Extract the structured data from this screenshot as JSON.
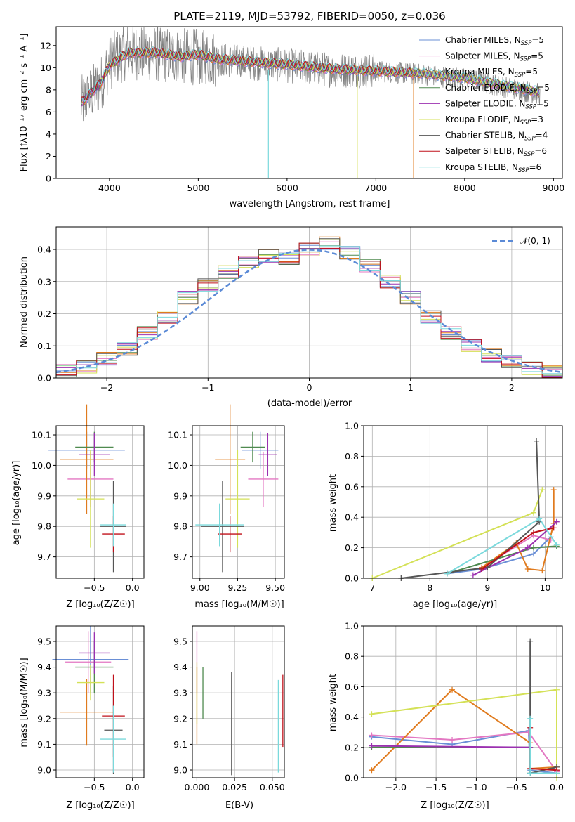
{
  "colors": {
    "chabrier_miles": "#6a8fd6",
    "salpeter_miles": "#e377c2",
    "kroupa_miles": "#e07b1e",
    "chabrier_elodie": "#4f8a4f",
    "salpeter_elodie": "#9b30b0",
    "kroupa_elodie": "#d4e157",
    "chabrier_stelib": "#555555",
    "salpeter_stelib": "#c0101a",
    "kroupa_stelib": "#7ad9dc",
    "gauss": "#5b8ad6",
    "grid": "#b0b0b0"
  },
  "panel_spectrum": {
    "title": "PLATE=2119, MJD=53792, FIBERID=0050, z=0.036",
    "xlabel": "wavelength [Angstrom, rest frame]",
    "ylabel": "Flux [fλ10⁻¹⁷ erg cm⁻² s⁻¹ A⁻¹]",
    "xticks": [
      "4000",
      "5000",
      "6000",
      "7000",
      "8000",
      "9000"
    ],
    "yticks": [
      "0",
      "2",
      "4",
      "6",
      "8",
      "10",
      "12"
    ],
    "legend": [
      {
        "base": "Chabrier MILES",
        "n": "5",
        "color_key": "chabrier_miles"
      },
      {
        "base": "Salpeter MILES",
        "n": "5",
        "color_key": "salpeter_miles"
      },
      {
        "base": "Kroupa MILES",
        "n": "5",
        "color_key": "kroupa_miles"
      },
      {
        "base": "Chabrier ELODIE",
        "n": "5",
        "color_key": "chabrier_elodie"
      },
      {
        "base": "Salpeter ELODIE",
        "n": "5",
        "color_key": "salpeter_elodie"
      },
      {
        "base": "Kroupa ELODIE",
        "n": "3",
        "color_key": "kroupa_elodie"
      },
      {
        "base": "Chabrier STELIB",
        "n": "4",
        "color_key": "chabrier_stelib"
      },
      {
        "base": "Salpeter STELIB",
        "n": "6",
        "color_key": "salpeter_stelib"
      },
      {
        "base": "Kroupa STELIB",
        "n": "6",
        "color_key": "kroupa_stelib"
      }
    ]
  },
  "panel_hist": {
    "xlabel": "(data-model)/error",
    "ylabel": "Normed distribution",
    "xticks": [
      "−2",
      "−1",
      "0",
      "1",
      "2"
    ],
    "yticks": [
      "0.0",
      "0.1",
      "0.2",
      "0.3",
      "0.4"
    ],
    "legend_label": "𝒩(0, 1)"
  },
  "panel_age_Z": {
    "ylabel": "age  [log₁₀(age/yr)]",
    "xlabel": "Z [log₁₀(Z/Z☉)]",
    "xticks": [
      "−0.5",
      "0.0"
    ],
    "yticks": [
      "9.7",
      "9.8",
      "9.9",
      "10.0",
      "10.1"
    ]
  },
  "panel_age_mass": {
    "xlabel": "mass [log₁₀(M/M☉)]",
    "xticks": [
      "9.00",
      "9.25",
      "9.50"
    ],
    "yticks": [
      "9.7",
      "9.8",
      "9.9",
      "10.0",
      "10.1"
    ]
  },
  "panel_weight_age": {
    "ylabel": "mass weight",
    "xlabel": "age  [log₁₀(age/yr)]",
    "xticks": [
      "7",
      "8",
      "9",
      "10"
    ],
    "yticks": [
      "0.0",
      "0.2",
      "0.4",
      "0.6",
      "0.8",
      "1.0"
    ]
  },
  "panel_mass_Z": {
    "ylabel": "mass [log₁₀(M/M☉)]",
    "xlabel": "Z [log₁₀(Z/Z☉)]",
    "xticks": [
      "−0.5",
      "0.0"
    ],
    "yticks": [
      "9.0",
      "9.1",
      "9.2",
      "9.3",
      "9.4",
      "9.5"
    ]
  },
  "panel_mass_ebv": {
    "xlabel": "E(B-V)",
    "xticks": [
      "0.000",
      "0.025",
      "0.050"
    ],
    "yticks": [
      "9.0",
      "9.1",
      "9.2",
      "9.3",
      "9.4",
      "9.5"
    ]
  },
  "panel_weight_Z": {
    "ylabel": "mass weight",
    "xlabel": "Z [log₁₀(Z/Z☉)]",
    "xticks": [
      "−2.0",
      "−1.5",
      "−1.0",
      "−0.5",
      "0.0"
    ],
    "yticks": [
      "0.0",
      "0.2",
      "0.4",
      "0.6",
      "0.8",
      "1.0"
    ]
  },
  "chart_data": [
    {
      "type": "line",
      "title": "PLATE=2119, MJD=53792, FIBERID=0050, z=0.036",
      "xlabel": "wavelength [Angstrom, rest frame]",
      "ylabel": "Flux [fλ10⁻¹⁷ erg cm⁻² s⁻¹ A⁻¹]",
      "xlim": [
        3400,
        9100
      ],
      "ylim": [
        0,
        13.7
      ],
      "grid": false,
      "legend": "top-right",
      "x": [
        3680,
        3900,
        4000,
        4200,
        4500,
        4800,
        5000,
        5200,
        5500,
        6000,
        6500,
        7000,
        7500,
        8000,
        8500,
        8850
      ],
      "series": [
        {
          "name": "Chabrier STELIB (data)",
          "values": [
            6.7,
            8.5,
            10.5,
            11.5,
            11.3,
            11.0,
            11.0,
            10.8,
            10.5,
            10.2,
            9.8,
            9.7,
            9.4,
            9.0,
            8.2,
            7.6
          ]
        },
        {
          "name": "Kroupa STELIB",
          "values": [
            6.8,
            8.6,
            10.2,
            11.3,
            11.4,
            11.0,
            11.2,
            10.8,
            10.6,
            10.3,
            9.9,
            9.7,
            9.5,
            9.1,
            8.3,
            7.8
          ]
        }
      ]
    },
    {
      "type": "bar",
      "title": "",
      "xlabel": "(data-model)/error",
      "ylabel": "Normed distribution",
      "xlim": [
        -2.5,
        2.5
      ],
      "ylim": [
        0,
        0.47
      ],
      "grid": true,
      "legend": "top-right",
      "x": [
        -2.4,
        -2.2,
        -2.0,
        -1.8,
        -1.6,
        -1.4,
        -1.2,
        -1.0,
        -0.8,
        -0.6,
        -0.4,
        -0.2,
        0.0,
        0.2,
        0.4,
        0.6,
        0.8,
        1.0,
        1.2,
        1.4,
        1.6,
        1.8,
        2.0,
        2.2,
        2.4
      ],
      "series": [
        {
          "name": "Chabrier MILES",
          "values": [
            0.022,
            0.035,
            0.06,
            0.09,
            0.14,
            0.19,
            0.25,
            0.29,
            0.33,
            0.36,
            0.38,
            0.37,
            0.4,
            0.42,
            0.39,
            0.35,
            0.3,
            0.25,
            0.19,
            0.14,
            0.1,
            0.07,
            0.05,
            0.03,
            0.02
          ]
        },
        {
          "name": "𝒩(0, 1)",
          "values": [
            0.018,
            0.035,
            0.054,
            0.079,
            0.111,
            0.15,
            0.194,
            0.242,
            0.29,
            0.333,
            0.368,
            0.391,
            0.399,
            0.391,
            0.368,
            0.333,
            0.29,
            0.242,
            0.194,
            0.15,
            0.111,
            0.079,
            0.054,
            0.035,
            0.018
          ]
        }
      ]
    },
    {
      "type": "scatter",
      "title": "",
      "xlabel": "Z [log₁₀(Z/Z☉)]",
      "ylabel": "age  [log₁₀(age/yr)]",
      "xlim": [
        -1.0,
        0.15
      ],
      "ylim": [
        9.63,
        10.13
      ],
      "grid": true,
      "series": [
        {
          "name": "Chabrier MILES",
          "x": -0.6,
          "y": 10.05
        },
        {
          "name": "Salpeter MILES",
          "x": -0.55,
          "y": 9.955
        },
        {
          "name": "Kroupa MILES",
          "x": -0.6,
          "y": 10.02
        },
        {
          "name": "Chabrier ELODIE",
          "x": -0.5,
          "y": 10.06
        },
        {
          "name": "Salpeter ELODIE",
          "x": -0.5,
          "y": 10.035
        },
        {
          "name": "Kroupa ELODIE",
          "x": -0.55,
          "y": 9.89
        },
        {
          "name": "Chabrier STELIB",
          "x": -0.25,
          "y": 9.8
        },
        {
          "name": "Salpeter STELIB",
          "x": -0.25,
          "y": 9.775
        },
        {
          "name": "Kroupa STELIB",
          "x": -0.25,
          "y": 9.805
        }
      ]
    },
    {
      "type": "line",
      "title": "",
      "xlabel": "age  [log₁₀(age/yr)]",
      "ylabel": "mass weight",
      "xlim": [
        6.85,
        10.3
      ],
      "ylim": [
        0,
        1.0
      ],
      "grid": true,
      "series": [
        {
          "name": "Chabrier MILES",
          "x": [
            8.3,
            8.9,
            9.8,
            10.1
          ],
          "y": [
            0.03,
            0.06,
            0.16,
            0.27
          ]
        },
        {
          "name": "Salpeter MILES",
          "x": [
            8.9,
            9.8,
            10.1
          ],
          "y": [
            0.07,
            0.28,
            0.25
          ]
        },
        {
          "name": "Kroupa MILES",
          "x": [
            8.9,
            9.5,
            9.7,
            9.95,
            10.15,
            10.15
          ],
          "y": [
            0.07,
            0.23,
            0.06,
            0.05,
            0.36,
            0.58
          ]
        },
        {
          "name": "Chabrier ELODIE",
          "x": [
            8.3,
            9.8,
            10.2
          ],
          "y": [
            0.03,
            0.2,
            0.21
          ]
        },
        {
          "name": "Salpeter ELODIE",
          "x": [
            8.75,
            9.7,
            10.2
          ],
          "y": [
            0.02,
            0.2,
            0.37
          ]
        },
        {
          "name": "Kroupa ELODIE",
          "x": [
            7.0,
            9.8,
            9.95
          ],
          "y": [
            0.0,
            0.43,
            0.58
          ]
        },
        {
          "name": "Chabrier STELIB",
          "x": [
            7.5,
            9.0,
            9.9,
            9.85
          ],
          "y": [
            0.0,
            0.07,
            0.37,
            0.9
          ]
        },
        {
          "name": "Salpeter STELIB",
          "x": [
            8.9,
            9.8,
            10.15
          ],
          "y": [
            0.06,
            0.3,
            0.33
          ]
        },
        {
          "name": "Kroupa STELIB",
          "x": [
            8.3,
            9.9,
            10.2
          ],
          "y": [
            0.03,
            0.39,
            0.22
          ]
        }
      ]
    },
    {
      "type": "scatter",
      "title": "",
      "xlabel": "mass [log₁₀(M/M☉)]",
      "ylabel": "",
      "xlim": [
        8.95,
        9.56
      ],
      "ylim": [
        9.63,
        10.13
      ],
      "grid": true,
      "series": [
        {
          "name": "Chabrier MILES",
          "x": 9.4,
          "y": 10.05
        },
        {
          "name": "Salpeter MILES",
          "x": 9.42,
          "y": 9.955
        },
        {
          "name": "Kroupa MILES",
          "x": 9.2,
          "y": 10.02
        },
        {
          "name": "Chabrier ELODIE",
          "x": 9.35,
          "y": 10.06
        },
        {
          "name": "Salpeter ELODIE",
          "x": 9.45,
          "y": 10.035
        },
        {
          "name": "Kroupa ELODIE",
          "x": 9.25,
          "y": 9.89
        },
        {
          "name": "Chabrier STELIB",
          "x": 9.15,
          "y": 9.8
        },
        {
          "name": "Salpeter STELIB",
          "x": 9.2,
          "y": 9.775
        },
        {
          "name": "Kroupa STELIB",
          "x": 9.13,
          "y": 9.805
        }
      ]
    },
    {
      "type": "scatter",
      "title": "",
      "xlabel": "Z [log₁₀(Z/Z☉)]",
      "ylabel": "mass [log₁₀(M/M☉)]",
      "xlim": [
        -1.0,
        0.15
      ],
      "ylim": [
        8.97,
        9.56
      ],
      "grid": true,
      "series": [
        {
          "name": "Chabrier MILES",
          "x": -0.55,
          "y": 9.43
        },
        {
          "name": "Salpeter MILES",
          "x": -0.58,
          "y": 9.42
        },
        {
          "name": "Kroupa MILES",
          "x": -0.6,
          "y": 9.225
        },
        {
          "name": "Chabrier ELODIE",
          "x": -0.5,
          "y": 9.4
        },
        {
          "name": "Salpeter ELODIE",
          "x": -0.5,
          "y": 9.455
        },
        {
          "name": "Kroupa ELODIE",
          "x": -0.55,
          "y": 9.34
        },
        {
          "name": "Chabrier STELIB",
          "x": -0.25,
          "y": 9.155
        },
        {
          "name": "Salpeter STELIB",
          "x": -0.25,
          "y": 9.21
        },
        {
          "name": "Kroupa STELIB",
          "x": -0.25,
          "y": 9.12
        }
      ]
    },
    {
      "type": "scatter",
      "title": "",
      "xlabel": "E(B-V)",
      "ylabel": "",
      "xlim": [
        -0.003,
        0.058
      ],
      "ylim": [
        8.97,
        9.56
      ],
      "grid": true,
      "series": [
        {
          "name": "Salpeter MILES",
          "x": 0.0,
          "y": 9.42
        },
        {
          "name": "Kroupa MILES",
          "x": 0.0,
          "y": 9.25
        },
        {
          "name": "Kroupa ELODIE",
          "x": 0.0,
          "y": 9.3
        },
        {
          "name": "Chabrier ELODIE",
          "x": 0.004,
          "y": 9.3
        },
        {
          "name": "Chabrier STELIB",
          "x": 0.023,
          "y": 9.18
        },
        {
          "name": "Kroupa STELIB",
          "x": 0.054,
          "y": 9.17
        },
        {
          "name": "Salpeter STELIB",
          "x": 0.057,
          "y": 9.23
        }
      ]
    },
    {
      "type": "line",
      "title": "",
      "xlabel": "Z [log₁₀(Z/Z☉)]",
      "ylabel": "mass weight",
      "xlim": [
        -2.4,
        0.07
      ],
      "ylim": [
        0,
        1.0
      ],
      "grid": true,
      "series": [
        {
          "name": "Chabrier MILES",
          "x": [
            -2.3,
            -1.3,
            -0.35,
            -0.33,
            0.0
          ],
          "y": [
            0.27,
            0.22,
            0.31,
            0.05,
            0.03
          ]
        },
        {
          "name": "Salpeter MILES",
          "x": [
            -2.3,
            -1.3,
            -0.35,
            0.0
          ],
          "y": [
            0.28,
            0.25,
            0.3,
            0.04
          ]
        },
        {
          "name": "Kroupa MILES",
          "x": [
            -2.3,
            -1.3,
            -0.33,
            -0.33,
            0.0
          ],
          "y": [
            0.05,
            0.58,
            0.23,
            0.06,
            0.07
          ]
        },
        {
          "name": "Chabrier ELODIE",
          "x": [
            -2.3,
            -0.33,
            -0.33,
            0.0
          ],
          "y": [
            0.2,
            0.2,
            0.03,
            0.03
          ]
        },
        {
          "name": "Salpeter ELODIE",
          "x": [
            -2.3,
            -0.33
          ],
          "y": [
            0.21,
            0.2
          ]
        },
        {
          "name": "Kroupa ELODIE",
          "x": [
            -2.3,
            0.0,
            0.0
          ],
          "y": [
            0.42,
            0.58,
            0.0
          ]
        },
        {
          "name": "Chabrier STELIB",
          "x": [
            -0.33,
            -0.33,
            0.0
          ],
          "y": [
            0.9,
            0.03,
            0.07
          ]
        },
        {
          "name": "Salpeter STELIB",
          "x": [
            -0.33,
            -0.33,
            0.0
          ],
          "y": [
            0.33,
            0.06,
            0.05
          ]
        },
        {
          "name": "Kroupa STELIB",
          "x": [
            -0.33,
            -0.33,
            0.0
          ],
          "y": [
            0.39,
            0.03,
            0.03
          ]
        }
      ]
    }
  ]
}
